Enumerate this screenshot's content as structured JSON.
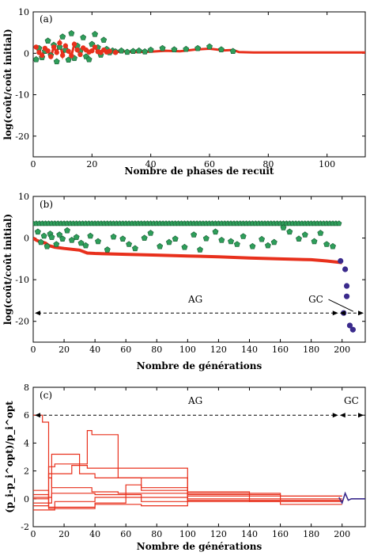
{
  "chart_data": [
    {
      "type": "scatter",
      "panel_label": "(a)",
      "xlabel": "Nombre de phases de recuit",
      "ylabel": "log(coût/coût initial)",
      "xlim": [
        0,
        113
      ],
      "ylim": [
        -25,
        10
      ],
      "xticks": [
        0,
        20,
        40,
        60,
        80,
        100
      ],
      "yticks": [
        -20,
        -10,
        0,
        10
      ],
      "colors": {
        "green": "#2e9e5a",
        "red": "#e8301c"
      },
      "series": [
        {
          "color_key": "green",
          "x": [
            1,
            2,
            3,
            4,
            5,
            6,
            7,
            8,
            9,
            10,
            11,
            12,
            13,
            14,
            15,
            16,
            17,
            18,
            19,
            20,
            21,
            22,
            23,
            24,
            25,
            26,
            27,
            28,
            30,
            32,
            34,
            36,
            38,
            40,
            44,
            48,
            52,
            56,
            60,
            64,
            68
          ],
          "y": [
            -1.5,
            1.2,
            -1,
            0.5,
            3,
            -0.5,
            2,
            -2,
            1.5,
            4,
            0.8,
            -1.6,
            4.8,
            -1.2,
            1.8,
            0.5,
            3.8,
            -0.8,
            -1.5,
            2.2,
            4.6,
            1.4,
            -0.4,
            3.2,
            1,
            0.2,
            0.6,
            0.4,
            0.6,
            0.3,
            0.5,
            0.6,
            0.4,
            0.8,
            1.2,
            0.9,
            1,
            1.2,
            1.6,
            0.9,
            0.5
          ]
        },
        {
          "color_key": "red",
          "x": [
            1,
            2,
            3,
            4,
            5,
            6,
            7,
            8,
            9,
            10,
            11,
            12,
            13,
            14,
            15,
            16,
            17,
            18,
            19,
            20,
            21,
            22,
            23,
            24,
            25,
            26,
            28,
            30,
            35,
            40,
            45,
            50,
            55,
            60,
            65,
            68,
            70,
            75,
            80,
            90,
            100,
            110,
            113
          ],
          "y": [
            1.5,
            0.2,
            -0.5,
            1.2,
            0.6,
            -0.8,
            1.5,
            0.2,
            2.5,
            -0.5,
            1.8,
            0.5,
            -0.6,
            2.2,
            0.8,
            -0.3,
            1.3,
            0.8,
            0.3,
            0.6,
            1.5,
            0.4,
            0.2,
            0.8,
            0.3,
            0.5,
            0.2,
            0.5,
            0.3,
            0.4,
            0.6,
            0.5,
            0.9,
            1.1,
            0.7,
            0.8,
            0.3,
            0.2,
            0.2,
            0.2,
            0.2,
            0.2,
            0.2
          ]
        }
      ]
    },
    {
      "type": "scatter",
      "panel_label": "(b)",
      "xlabel": "Nombre de générations",
      "ylabel": "log(coût/coût initial)",
      "xlim": [
        0,
        215
      ],
      "ylim": [
        -25,
        10
      ],
      "xticks": [
        0,
        20,
        40,
        60,
        80,
        100,
        120,
        140,
        160,
        180,
        200
      ],
      "yticks": [
        -20,
        -10,
        0,
        10
      ],
      "colors": {
        "green": "#2e9e5a",
        "red": "#e8301c",
        "blue": "#3a2a8c"
      },
      "top_band": {
        "y": 3.5,
        "x_start": 0,
        "x_end": 198,
        "step": 2
      },
      "red_curve": {
        "x": [
          0,
          2,
          4,
          6,
          8,
          10,
          12,
          14,
          20,
          30,
          35,
          40,
          60,
          80,
          100,
          120,
          140,
          160,
          180,
          190,
          200
        ],
        "y": [
          0,
          -0.5,
          -0.8,
          -1,
          -1.2,
          -1.8,
          -2,
          -2.2,
          -2.5,
          -2.9,
          -3.6,
          -3.7,
          -3.9,
          -4.1,
          -4.3,
          -4.5,
          -4.8,
          -5,
          -5.2,
          -5.5,
          -5.9
        ]
      },
      "green_points": {
        "x": [
          3,
          5,
          7,
          9,
          11,
          12,
          15,
          17,
          19,
          22,
          25,
          28,
          31,
          34,
          37,
          42,
          48,
          52,
          58,
          62,
          66,
          72,
          76,
          82,
          88,
          92,
          98,
          104,
          108,
          112,
          118,
          122,
          128,
          132,
          136,
          142,
          148,
          152,
          156,
          162,
          166,
          172,
          176,
          182,
          186,
          190,
          194
        ],
        "y": [
          1.5,
          -1,
          0.5,
          -2,
          1,
          0.2,
          -1.5,
          0.8,
          -0.2,
          1.8,
          -0.5,
          0.2,
          -1.2,
          -1.8,
          0.5,
          -0.8,
          -2.8,
          0.3,
          -0.2,
          -1.5,
          -2.5,
          0,
          1.2,
          -2,
          -1,
          -0.2,
          -2.2,
          0.8,
          -2.8,
          -0.1,
          1.5,
          -0.5,
          -0.8,
          -1.5,
          0.4,
          -2,
          -0.3,
          -1.8,
          -1,
          2.5,
          1.5,
          -0.2,
          0.8,
          -0.8,
          1.2,
          -1.5,
          -2
        ]
      },
      "blue_points": {
        "x": [
          199,
          202,
          203,
          203,
          201,
          205,
          207
        ],
        "y": [
          -5.5,
          -7.5,
          -11.5,
          -14,
          -18,
          -21,
          -22
        ]
      },
      "annotations": [
        {
          "text": "AG",
          "x": 105,
          "y": -15.5
        },
        {
          "text": "GC",
          "x": 183,
          "y": -15.5
        }
      ],
      "arrow_level": -18,
      "divider_x": 198
    },
    {
      "type": "line",
      "panel_label": "(c)",
      "xlabel": "Nombre de générations",
      "ylabel": "(p_i-p_i^opt)/p_i^opt",
      "xlim": [
        0,
        215
      ],
      "ylim": [
        -2,
        8
      ],
      "xticks": [
        0,
        20,
        40,
        60,
        80,
        100,
        120,
        140,
        160,
        180,
        200
      ],
      "yticks": [
        -2,
        0,
        2,
        4,
        6,
        8
      ],
      "colors": {
        "red": "#e8301c",
        "blue": "#3a2a8c"
      },
      "series": [
        {
          "color_key": "red",
          "x": [
            0,
            6,
            6,
            10,
            10,
            12,
            12,
            38,
            38,
            55,
            55,
            100,
            100,
            160,
            160,
            200
          ],
          "y": [
            6,
            6,
            5.5,
            5.5,
            1.5,
            1.5,
            0.8,
            0.8,
            0.5,
            0.5,
            0.4,
            0.4,
            0.3,
            0.3,
            0.2,
            0.2
          ]
        },
        {
          "color_key": "red",
          "x": [
            0,
            10,
            10,
            14,
            14,
            35,
            35,
            38,
            38,
            55,
            55,
            100,
            100,
            200
          ],
          "y": [
            0,
            0,
            2.3,
            2.3,
            2.5,
            2.5,
            4.9,
            4.9,
            4.6,
            4.6,
            2.2,
            2.2,
            -0.1,
            -0.1
          ]
        },
        {
          "color_key": "red",
          "x": [
            0,
            12,
            12,
            30,
            30,
            40,
            40,
            70,
            70,
            100,
            100,
            200
          ],
          "y": [
            -0.3,
            -0.3,
            3.2,
            3.2,
            1.8,
            1.8,
            1.5,
            1.5,
            0.8,
            0.8,
            0,
            0
          ]
        },
        {
          "color_key": "red",
          "x": [
            0,
            10,
            10,
            25,
            25,
            35,
            35,
            55,
            55,
            100,
            100,
            160,
            160,
            200
          ],
          "y": [
            -0.5,
            -0.5,
            1.8,
            1.8,
            2.4,
            2.4,
            2.2,
            2.2,
            1.5,
            1.5,
            -0.2,
            -0.2,
            -0.4,
            -0.4
          ]
        },
        {
          "color_key": "red",
          "x": [
            0,
            10,
            10,
            40,
            40,
            70,
            70,
            100,
            100,
            200
          ],
          "y": [
            0.3,
            0.3,
            -0.6,
            -0.6,
            -0.4,
            -0.4,
            -0.5,
            -0.5,
            -0.1,
            -0.1
          ]
        },
        {
          "color_key": "red",
          "x": [
            0,
            14,
            14,
            40,
            40,
            100,
            100,
            160,
            160,
            200
          ],
          "y": [
            -0.8,
            -0.8,
            -0.2,
            -0.2,
            0.1,
            0.1,
            0.4,
            0.4,
            -0.1,
            -0.1
          ]
        },
        {
          "color_key": "red",
          "x": [
            0,
            12,
            12,
            40,
            40,
            70,
            70,
            100,
            100,
            140,
            140,
            200
          ],
          "y": [
            0.1,
            0.1,
            0.4,
            0.4,
            0.3,
            0.3,
            -0.2,
            -0.2,
            0.5,
            0.5,
            0.2,
            0.2
          ]
        },
        {
          "color_key": "red",
          "x": [
            0,
            10,
            10,
            40,
            40,
            60,
            60,
            70,
            70,
            100,
            100,
            140,
            140,
            200
          ],
          "y": [
            0.6,
            0.6,
            -0.7,
            -0.7,
            -0.3,
            -0.3,
            1,
            1,
            0.6,
            0.6,
            0.2,
            0.2,
            -0.2,
            -0.2
          ]
        },
        {
          "color_key": "blue",
          "x": [
            198,
            200,
            202,
            204,
            206,
            210,
            215
          ],
          "y": [
            0.1,
            -0.3,
            0.4,
            -0.1,
            0,
            0,
            0
          ]
        }
      ],
      "annotations": [
        {
          "text": "AG",
          "x": 105,
          "y": 6.8
        },
        {
          "text": "GC",
          "x": 206,
          "y": 6.8
        }
      ],
      "arrow_level": 6,
      "divider_x": 198
    }
  ]
}
